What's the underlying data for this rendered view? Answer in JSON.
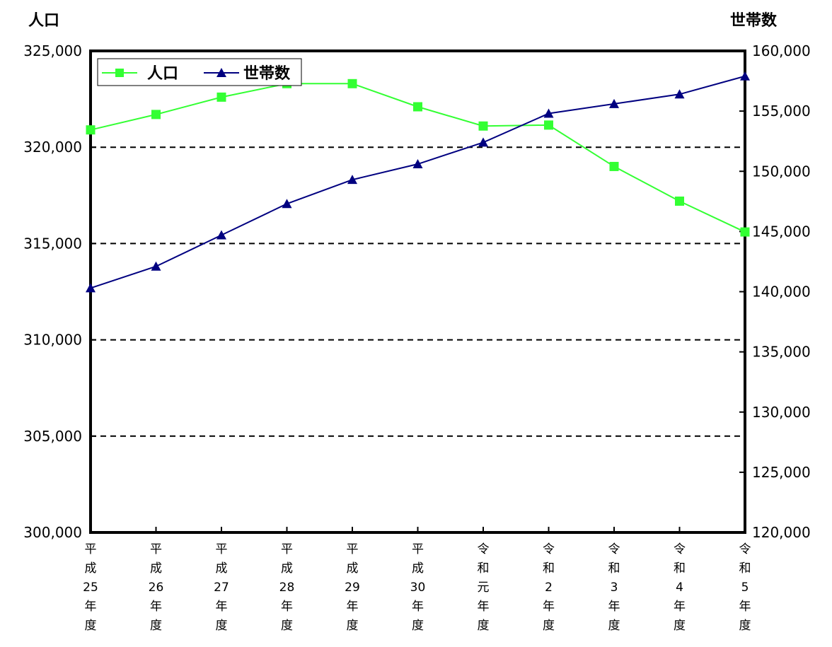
{
  "chart_data": {
    "type": "line",
    "left_axis": {
      "title": "人口",
      "range": [
        300000,
        325000
      ],
      "ticks": [
        300000,
        305000,
        310000,
        315000,
        320000,
        325000
      ],
      "tick_labels": [
        "300,000",
        "305,000",
        "310,000",
        "315,000",
        "320,000",
        "325,000"
      ]
    },
    "right_axis": {
      "title": "世帯数",
      "range": [
        120000,
        160000
      ],
      "ticks": [
        120000,
        125000,
        130000,
        135000,
        140000,
        145000,
        150000,
        155000,
        160000
      ],
      "tick_labels": [
        "120,000",
        "125,000",
        "130,000",
        "135,000",
        "140,000",
        "145,000",
        "150,000",
        "155,000",
        "160,000"
      ]
    },
    "categories": [
      [
        "平",
        "成",
        "25",
        "年",
        "度"
      ],
      [
        "平",
        "成",
        "26",
        "年",
        "度"
      ],
      [
        "平",
        "成",
        "27",
        "年",
        "度"
      ],
      [
        "平",
        "成",
        "28",
        "年",
        "度"
      ],
      [
        "平",
        "成",
        "29",
        "年",
        "度"
      ],
      [
        "平",
        "成",
        "30",
        "年",
        "度"
      ],
      [
        "令",
        "和",
        "元",
        "年",
        "度"
      ],
      [
        "令",
        "和",
        "2",
        "年",
        "度"
      ],
      [
        "令",
        "和",
        "3",
        "年",
        "度"
      ],
      [
        "令",
        "和",
        "4",
        "年",
        "度"
      ],
      [
        "令",
        "和",
        "5",
        "年",
        "度"
      ]
    ],
    "series": [
      {
        "name": "人口",
        "axis": "left",
        "color": "#33ff33",
        "marker": "square",
        "values": [
          320900,
          321700,
          322600,
          323300,
          323300,
          322100,
          321100,
          321150,
          319000,
          317200,
          315600
        ]
      },
      {
        "name": "世帯数",
        "axis": "right",
        "color": "#000080",
        "marker": "triangle",
        "values": [
          140300,
          142100,
          144700,
          147300,
          149300,
          150600,
          152400,
          154800,
          155600,
          156400,
          157900
        ]
      }
    ],
    "gridlines": "dashed, horizontal, left-axis ticks",
    "legend_position": "top-left"
  }
}
